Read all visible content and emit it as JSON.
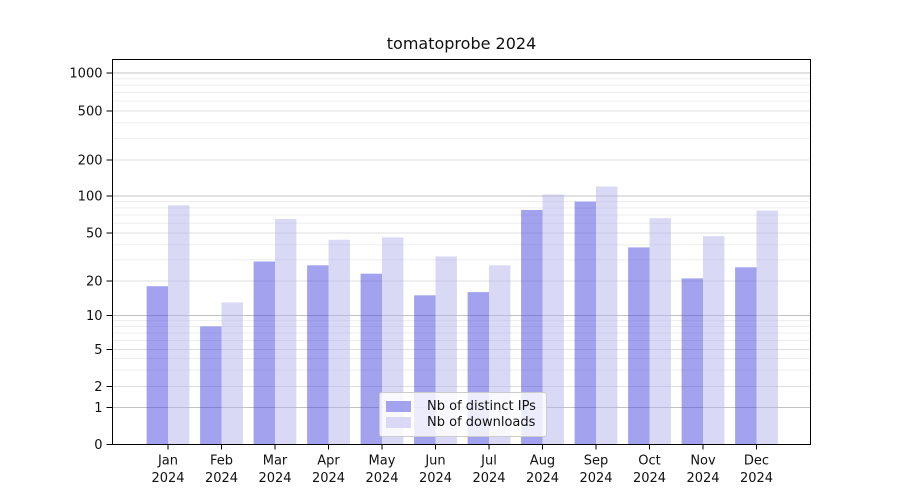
{
  "title": "tomatoprobe 2024",
  "chart_data": {
    "type": "bar",
    "title": "tomatoprobe 2024",
    "x_categories": [
      "Jan",
      "Feb",
      "Mar",
      "Apr",
      "May",
      "Jun",
      "Jul",
      "Aug",
      "Sep",
      "Oct",
      "Nov",
      "Dec"
    ],
    "x_year": "2024",
    "series": [
      {
        "name": "Nb of distinct IPs",
        "legend_color": "#a2a2ee",
        "fill": "rgba(69,69,221,0.5)",
        "values": [
          18,
          8,
          29,
          27,
          23,
          15,
          16,
          77,
          90,
          38,
          21,
          26
        ]
      },
      {
        "name": "Nb of downloads",
        "legend_color": "#d9d9f6",
        "fill": "rgba(179,179,237,0.5)",
        "values": [
          84,
          13,
          65,
          44,
          46,
          32,
          27,
          103,
          120,
          66,
          47,
          76
        ]
      }
    ],
    "y_axis": {
      "scale": "symlog",
      "tick_values": [
        0,
        1,
        2,
        5,
        10,
        20,
        50,
        100,
        200,
        500,
        1000
      ],
      "range_top": 1400
    },
    "grid": "on",
    "legend_position": "lower center",
    "colors": {
      "major_grid": "#c3c3c3",
      "mid_grid": "#dfdfdf",
      "minor_grid": "#ededed",
      "spine": "#000000",
      "text": "#111111"
    }
  }
}
